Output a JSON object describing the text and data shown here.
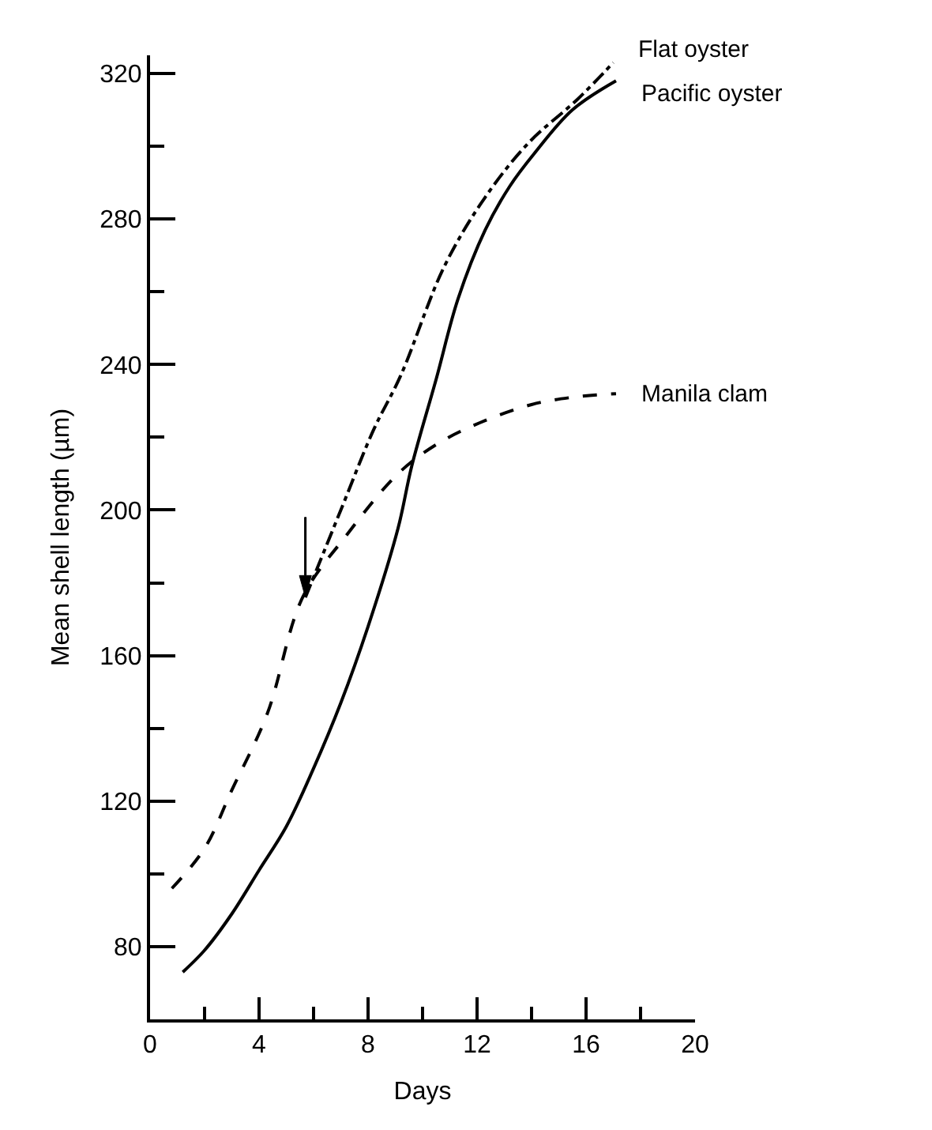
{
  "chart_data": {
    "type": "line",
    "xlabel": "Days",
    "ylabel": "Mean shell length (µm)",
    "xlim": [
      0,
      20
    ],
    "ylim": [
      60,
      325
    ],
    "xticks": [
      0,
      {
        "value": 2,
        "label": null
      },
      4,
      {
        "value": 6,
        "label": null
      },
      8,
      {
        "value": 10,
        "label": null
      },
      12,
      {
        "value": 14,
        "label": null
      },
      16,
      {
        "value": 18,
        "label": null
      },
      20
    ],
    "yticks": [
      80,
      {
        "value": 100,
        "label": null
      },
      120,
      {
        "value": 140,
        "label": null
      },
      160,
      {
        "value": 180,
        "label": null
      },
      200,
      {
        "value": 220,
        "label": null
      },
      240,
      {
        "value": 260,
        "label": null
      },
      280,
      {
        "value": 300,
        "label": null
      },
      320
    ],
    "grid": false,
    "legend": false,
    "marker": "none",
    "series": [
      {
        "name": "Flat oyster",
        "color": "#000000",
        "line_style": "dashdot",
        "x": [
          5.7,
          7.0,
          8.2,
          9.2,
          10.8,
          12.3,
          13.9,
          15.7,
          17.0
        ],
        "values": [
          176,
          200,
          222,
          237,
          267,
          286,
          301,
          313,
          323
        ]
      },
      {
        "name": "Pacific oyster",
        "color": "#000000",
        "line_style": "solid",
        "x": [
          1.2,
          2,
          3,
          4,
          5,
          6,
          7,
          8,
          9.1,
          9.6,
          10.5,
          11.3,
          12.3,
          13.2,
          14.1,
          15.5,
          17.1
        ],
        "values": [
          73,
          79,
          89,
          101,
          113,
          129,
          147,
          168,
          195,
          212,
          236,
          258,
          277,
          289,
          298,
          310,
          318
        ]
      },
      {
        "name": "Manila clam",
        "color": "#000000",
        "line_style": "dashed",
        "x": [
          0.8,
          2,
          3,
          4.3,
          5.6,
          7.2,
          9.1,
          10.5,
          12.1,
          14,
          15.5,
          17.1
        ],
        "values": [
          96,
          107,
          123,
          144,
          176,
          193,
          210,
          218,
          224,
          229,
          231,
          232
        ]
      }
    ]
  }
}
